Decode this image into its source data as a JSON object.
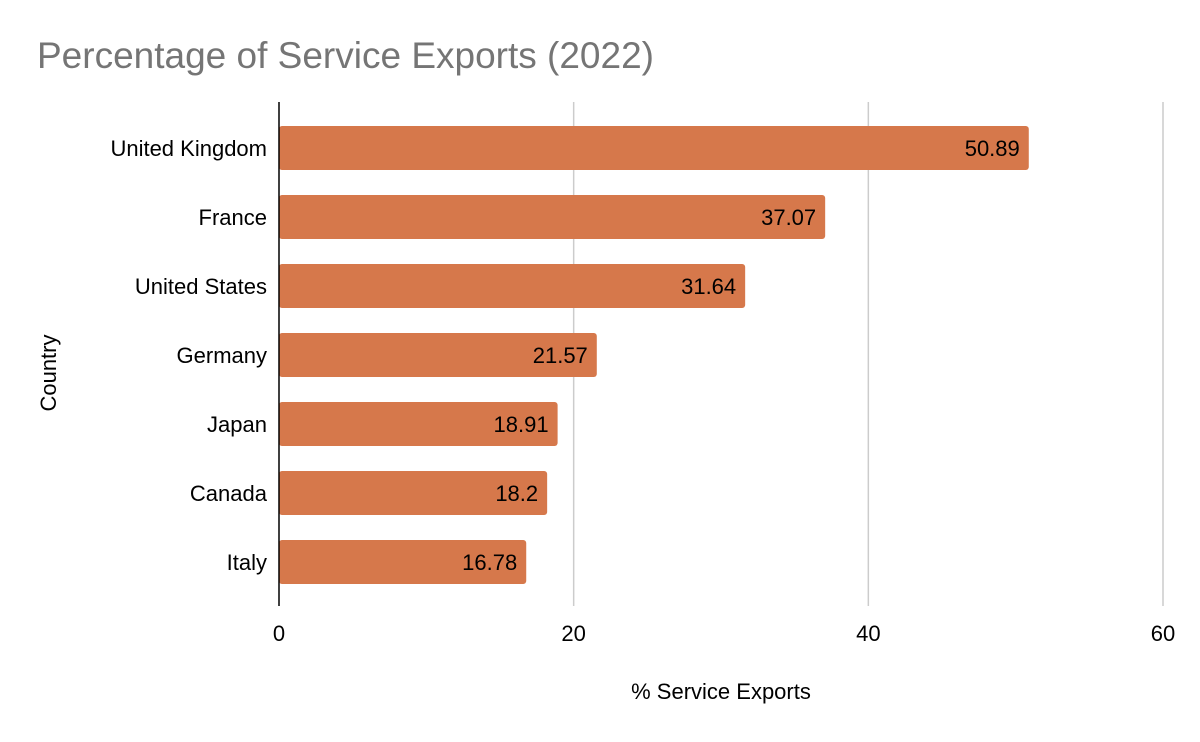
{
  "chart_data": {
    "type": "bar",
    "orientation": "horizontal",
    "title": "Percentage of Service Exports (2022)",
    "xlabel": "% Service Exports",
    "ylabel": "Country",
    "categories": [
      "United Kingdom",
      "France",
      "United States",
      "Germany",
      "Japan",
      "Canada",
      "Italy"
    ],
    "values": [
      50.89,
      37.07,
      31.64,
      21.57,
      18.91,
      18.2,
      16.78
    ],
    "data_labels": [
      "50.89",
      "37.07",
      "31.64",
      "21.57",
      "18.91",
      "18.2",
      "16.78"
    ],
    "xlim": [
      0,
      60
    ],
    "xticks": [
      0,
      20,
      40,
      60
    ],
    "xtick_labels": [
      "0",
      "20",
      "40",
      "60"
    ],
    "grid": "vertical",
    "legend": "none",
    "colors": {
      "bar": "#d6784b",
      "grid": "#cccccc",
      "axis": "#000000",
      "title": "#757575"
    }
  }
}
